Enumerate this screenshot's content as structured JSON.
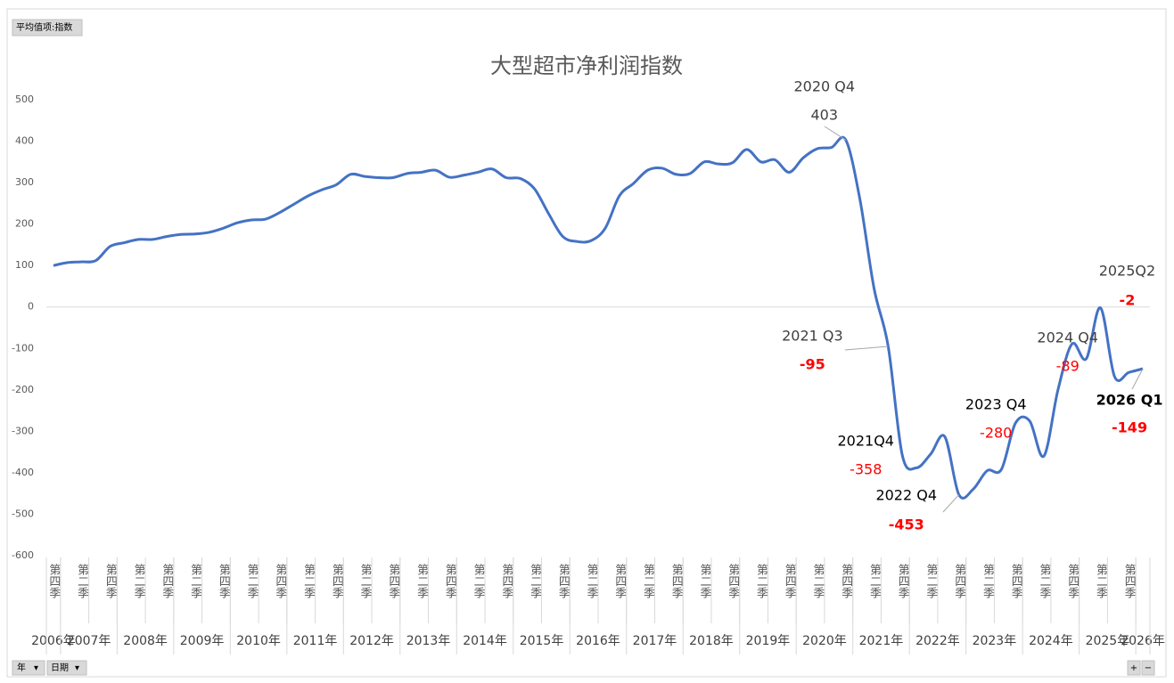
{
  "ui": {
    "value_field": "平均值项:指数",
    "filters": [
      "年",
      "日期"
    ],
    "zoom": [
      "+",
      "−"
    ]
  },
  "chart_data": {
    "type": "line",
    "title": "大型超市净利润指数",
    "categories": [
      "第四季",
      null,
      "第二季",
      null,
      "第四季",
      null,
      "第二季",
      null,
      "第四季",
      null,
      "第二季",
      null,
      "第四季",
      null,
      "第二季",
      null,
      "第四季",
      null,
      "第二季",
      null,
      "第四季",
      null,
      "第二季",
      null,
      "第四季",
      null,
      "第二季",
      null,
      "第四季",
      null,
      "第二季",
      null,
      "第四季",
      null,
      "第二季",
      null,
      "第四季",
      null,
      "第二季",
      null,
      "第四季",
      null,
      "第二季",
      null,
      "第四季",
      null,
      "第二季",
      null,
      "第四季",
      null,
      "第二季",
      null,
      "第四季",
      null,
      "第二季",
      null,
      "第四季",
      null,
      "第二季",
      null,
      "第四季",
      null,
      "第二季",
      null,
      "第四季",
      null,
      "第二季",
      null,
      "第四季",
      null,
      "第二季",
      null,
      "第四季",
      null,
      "第二季",
      null,
      "第四季",
      null
    ],
    "years": [
      "2006年",
      "2007年",
      "2008年",
      "2009年",
      "2010年",
      "2011年",
      "2012年",
      "2013年",
      "2014年",
      "2015年",
      "2016年",
      "2017年",
      "2018年",
      "2019年",
      "2020年",
      "2021年",
      "2022年",
      "2023年",
      "2024年",
      "2025年",
      "2026年"
    ],
    "values": [
      100,
      107,
      109,
      112,
      146,
      155,
      163,
      163,
      170,
      175,
      176,
      180,
      190,
      203,
      210,
      212,
      228,
      248,
      268,
      283,
      295,
      320,
      315,
      312,
      312,
      322,
      325,
      330,
      313,
      318,
      325,
      333,
      312,
      310,
      285,
      225,
      170,
      158,
      160,
      190,
      268,
      298,
      330,
      335,
      320,
      322,
      350,
      345,
      348,
      380,
      350,
      355,
      325,
      360,
      382,
      385,
      403,
      260,
      45,
      -95,
      -358,
      -388,
      -355,
      -313,
      -453,
      -440,
      -395,
      -392,
      -280,
      -275,
      -360,
      -200,
      -89,
      -125,
      -2,
      -168,
      -158,
      -149
    ],
    "point_labels": [
      null,
      null,
      null,
      null,
      null,
      null,
      null,
      null,
      null,
      null,
      null,
      null,
      null,
      null,
      null,
      null,
      null,
      null,
      null,
      null,
      null,
      null,
      null,
      null,
      null,
      null,
      null,
      null,
      null,
      null,
      null,
      null,
      null,
      null,
      null,
      null,
      null,
      null,
      null,
      null,
      null,
      null,
      null,
      null,
      null,
      null,
      null,
      null,
      null,
      null,
      null,
      null,
      null,
      null,
      null,
      null,
      "2020 Q4",
      null,
      null,
      "2021 Q3",
      "2021Q4",
      null,
      null,
      null,
      "2022 Q4",
      null,
      null,
      null,
      "2023 Q4",
      null,
      null,
      null,
      "2024 Q4",
      null,
      "2025Q2",
      null,
      null,
      "2026 Q1"
    ],
    "color": "#4472c4",
    "ylim": [
      -600,
      500
    ],
    "yticks": [
      -600,
      -500,
      -400,
      -300,
      -200,
      -100,
      0,
      100,
      200,
      300,
      400,
      500
    ],
    "grid": false
  }
}
